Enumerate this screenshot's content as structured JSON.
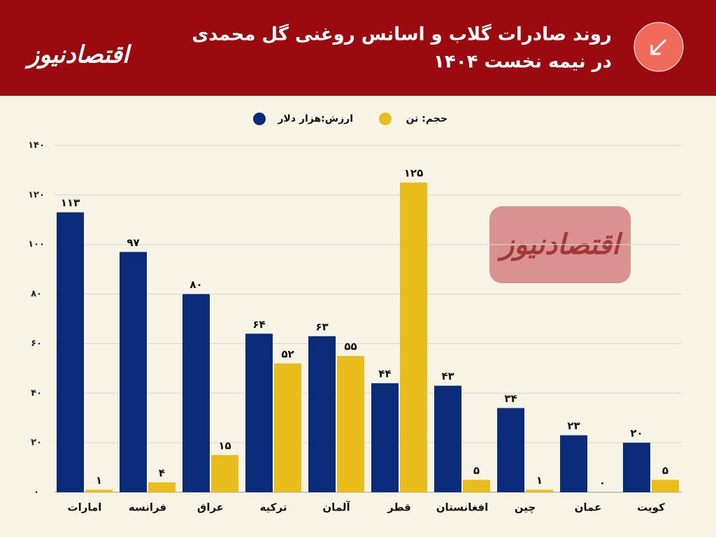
{
  "brand": "اقتصادنیوز",
  "chart_data": {
    "type": "bar",
    "title": [
      "روند صادرات گلاب و اسانس روغنی گل محمدی",
      "در نیمه نخست ۱۴۰۴"
    ],
    "categories": [
      "امارات",
      "فرانسه",
      "عراق",
      "ترکیه",
      "آلمان",
      "قطر",
      "افغانستان",
      "چین",
      "عمان",
      "کویت"
    ],
    "series": [
      {
        "name": "ارزش:هزار دلار",
        "color": "#0a2a7a",
        "values": [
          113,
          97,
          80,
          64,
          63,
          44,
          43,
          34,
          23,
          20
        ],
        "value_labels": [
          "۱۱۳",
          "۹۷",
          "۸۰",
          "۶۴",
          "۶۳",
          "۴۴",
          "۴۳",
          "۳۴",
          "۲۳",
          "۲۰"
        ]
      },
      {
        "name": "حجم: تن",
        "color": "#e8bd1c",
        "values": [
          1,
          4,
          15,
          52,
          55,
          125,
          5,
          1,
          0,
          5
        ],
        "value_labels": [
          "۱",
          "۴",
          "۱۵",
          "۵۲",
          "۵۵",
          "۱۲۵",
          "۵",
          "۱",
          "۰",
          "۵"
        ]
      }
    ],
    "ylim": [
      0,
      140
    ],
    "yticks": [
      {
        "value": 0,
        "label": "۰"
      },
      {
        "value": 20,
        "label": "۲۰"
      },
      {
        "value": 40,
        "label": "۴۰"
      },
      {
        "value": 60,
        "label": "۶۰"
      },
      {
        "value": 80,
        "label": "۸۰"
      },
      {
        "value": 100,
        "label": "۱۰۰"
      },
      {
        "value": 120,
        "label": "۱۲۰"
      },
      {
        "value": 140,
        "label": "۱۴۰"
      }
    ],
    "grid": true
  }
}
